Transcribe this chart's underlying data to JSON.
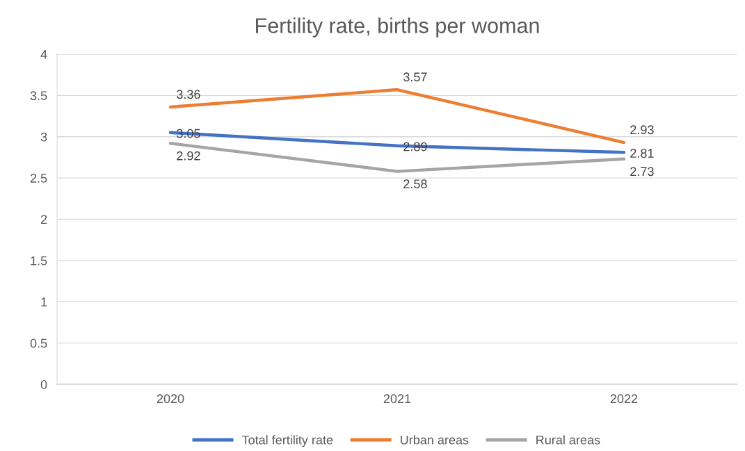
{
  "chart_data": {
    "type": "line",
    "title": "Fertility rate, births per woman",
    "categories": [
      "2020",
      "2021",
      "2022"
    ],
    "series": [
      {
        "name": "Total fertility rate",
        "color": "#4472c4",
        "values": [
          3.05,
          2.89,
          2.81
        ]
      },
      {
        "name": "Urban areas",
        "color": "#ed7d31",
        "values": [
          3.36,
          3.57,
          2.93
        ]
      },
      {
        "name": "Rural areas",
        "color": "#a5a5a5",
        "values": [
          2.92,
          2.58,
          2.73
        ]
      }
    ],
    "ylim": [
      0,
      4
    ],
    "yticks": [
      0,
      0.5,
      1,
      1.5,
      2,
      2.5,
      3,
      3.5,
      4
    ],
    "grid": "y",
    "legend": "bottom",
    "data_labels": true,
    "marker": "none",
    "line_style": "solid"
  }
}
